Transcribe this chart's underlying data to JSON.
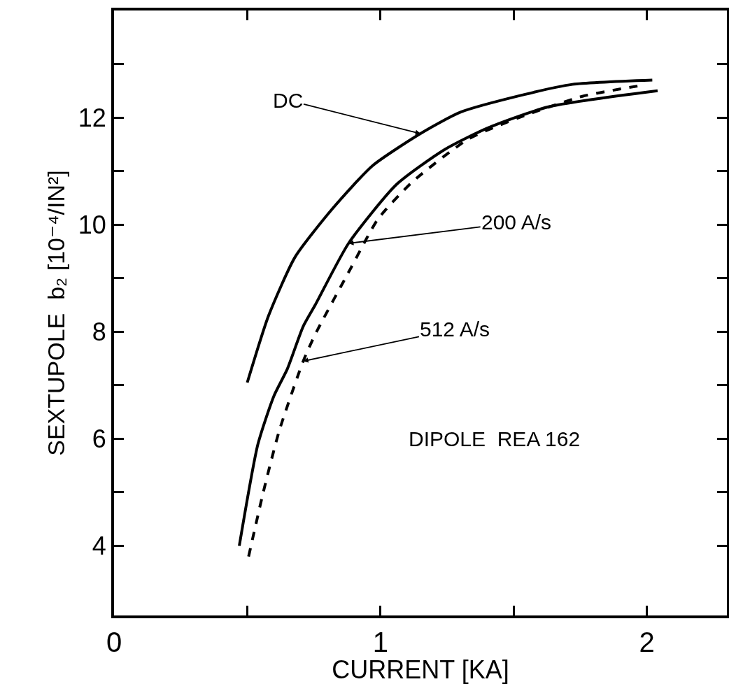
{
  "chart_data": {
    "type": "line",
    "xlabel": "CURRENT [KA]",
    "ylabel": "SEXTUPOLE  b₂ [10⁻⁴/IN²]",
    "series": [
      {
        "color": "#000000",
        "line_style": "solid",
        "x": [
          0.5,
          0.58,
          0.68,
          0.82,
          0.97,
          1.15,
          1.3,
          1.54,
          1.72,
          2.02
        ],
        "values": [
          7.05,
          8.3,
          9.4,
          10.3,
          11.1,
          11.7,
          12.1,
          12.43,
          12.62,
          12.7
        ]
      },
      {
        "color": "#000000",
        "line_style": "solid",
        "x": [
          0.47,
          0.54,
          0.6,
          0.65,
          0.71,
          0.755,
          0.88,
          1.06,
          1.24,
          1.4,
          1.63,
          2.04
        ],
        "values": [
          4.0,
          5.9,
          6.8,
          7.3,
          8.1,
          8.5,
          9.65,
          10.75,
          11.4,
          11.8,
          12.2,
          12.5
        ]
      },
      {
        "color": "#000000",
        "line_style": "dashed",
        "x": [
          0.505,
          0.56,
          0.62,
          0.71,
          0.755,
          0.89,
          0.99,
          1.12,
          1.33,
          1.52,
          1.76,
          1.98
        ],
        "values": [
          3.8,
          5.0,
          6.15,
          7.45,
          7.95,
          9.2,
          10.1,
          10.8,
          11.6,
          12.0,
          12.4,
          12.6
        ]
      }
    ],
    "annotations": [
      {
        "text": "DC",
        "x": 1.15,
        "y": 11.7
      },
      {
        "text": "200 A/s",
        "x": 0.88,
        "y": 9.65
      },
      {
        "text": "512 A/s",
        "x": 0.71,
        "y": 7.45
      },
      "DIPOLE  REA 162"
    ],
    "xlim": [
      0,
      2.3
    ],
    "ylim": [
      2.7,
      14
    ],
    "xticks": [
      0,
      {
        "value": 0.5,
        "label": null
      },
      1,
      {
        "value": 1.5,
        "label": null
      },
      2
    ],
    "yticks": [
      4,
      {
        "value": 5,
        "label": null
      },
      6,
      {
        "value": 7,
        "label": null
      },
      8,
      {
        "value": 9,
        "label": null
      },
      10,
      {
        "value": 11,
        "label": null
      },
      12,
      {
        "value": 13,
        "label": null
      }
    ],
    "marker": "none",
    "grid": false
  }
}
